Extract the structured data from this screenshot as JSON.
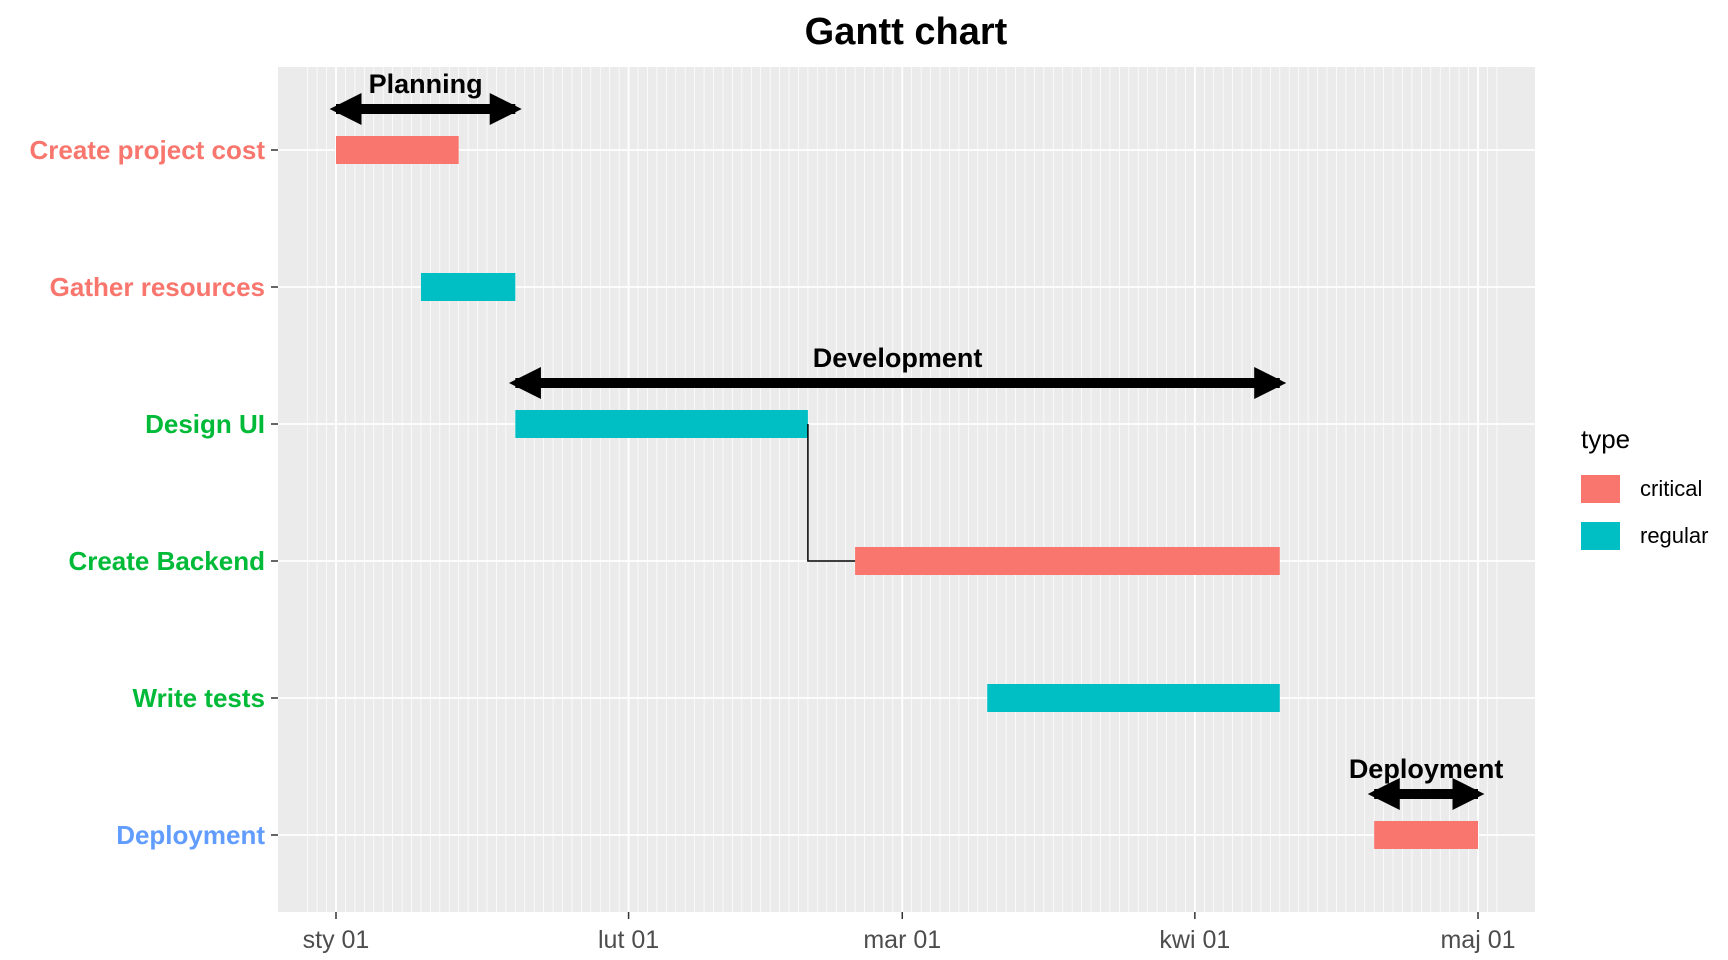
{
  "chart_data": {
    "type": "gantt",
    "title": "Gantt chart",
    "xlabel": "",
    "ylabel": "",
    "x_type": "date",
    "xlim": [
      "2023-12-29",
      "2024-05-03"
    ],
    "x_ticks": [
      {
        "date": "2024-01-01",
        "label": "sty 01"
      },
      {
        "date": "2024-02-01",
        "label": "lut 01"
      },
      {
        "date": "2024-03-01",
        "label": "mar 01"
      },
      {
        "date": "2024-04-01",
        "label": "kwi 01"
      },
      {
        "date": "2024-05-01",
        "label": "maj 01"
      }
    ],
    "minor_grid": "daily",
    "tasks": [
      {
        "name": "Create project cost",
        "start": "2024-01-01",
        "end": "2024-01-14",
        "type": "critical",
        "label_color": "#F8766D"
      },
      {
        "name": "Gather resources",
        "start": "2024-01-10",
        "end": "2024-01-20",
        "type": "regular",
        "label_color": "#F8766D"
      },
      {
        "name": "Design UI",
        "start": "2024-01-20",
        "end": "2024-02-20",
        "type": "regular",
        "label_color": "#00BA38"
      },
      {
        "name": "Create Backend",
        "start": "2024-02-25",
        "end": "2024-04-10",
        "type": "critical",
        "label_color": "#00BA38"
      },
      {
        "name": "Write tests",
        "start": "2024-03-10",
        "end": "2024-04-10",
        "type": "regular",
        "label_color": "#00BA38"
      },
      {
        "name": "Deployment",
        "start": "2024-04-20",
        "end": "2024-05-01",
        "type": "critical",
        "label_color": "#619CFF"
      }
    ],
    "dependencies": [
      {
        "from": "Design UI",
        "to": "Create Backend"
      }
    ],
    "phases": [
      {
        "label": "Planning",
        "start": "2024-01-01",
        "end": "2024-01-20",
        "above_task": "Create project cost"
      },
      {
        "label": "Development",
        "start": "2024-01-20",
        "end": "2024-04-10",
        "above_task": "Design UI"
      },
      {
        "label": "Deployment",
        "start": "2024-04-20",
        "end": "2024-05-01",
        "above_task": "Deployment"
      }
    ],
    "legend": {
      "title": "type",
      "position": "right",
      "entries": [
        {
          "label": "critical",
          "color": "#F8766D"
        },
        {
          "label": "regular",
          "color": "#00BFC4"
        }
      ]
    },
    "colors": {
      "panel_background": "#EBEBEB",
      "grid": "#FFFFFF",
      "critical": "#F8766D",
      "regular": "#00BFC4"
    },
    "grid": true
  }
}
